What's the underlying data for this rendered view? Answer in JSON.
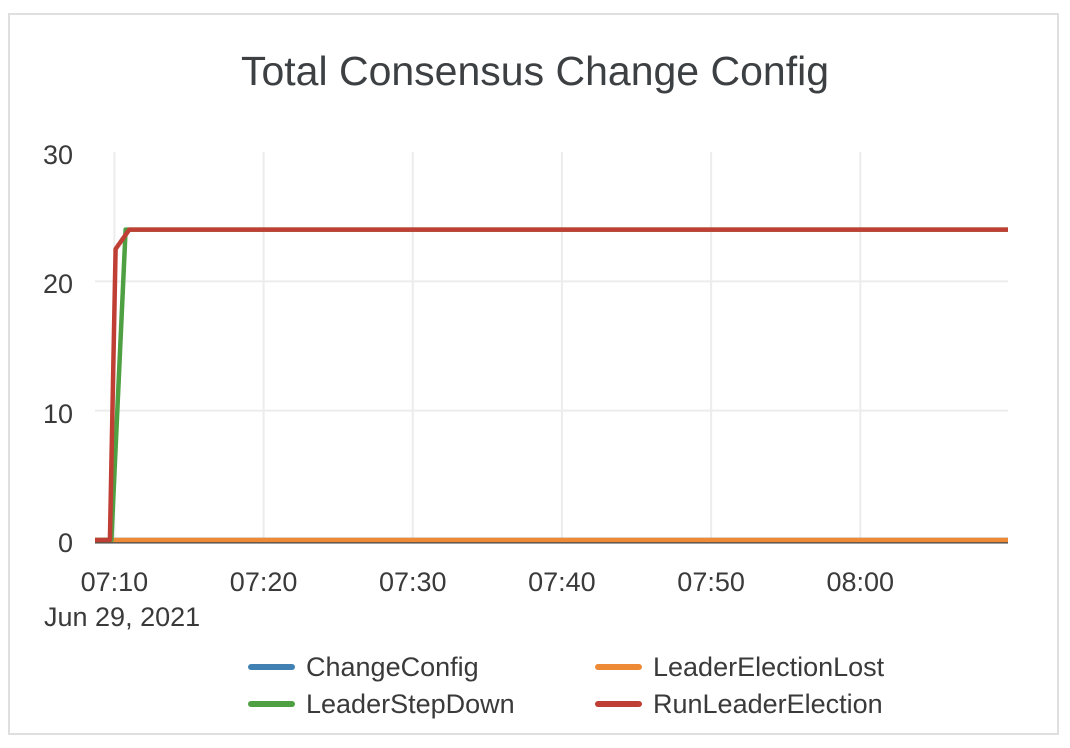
{
  "page": {
    "background_color": "#ffffff",
    "card_border_color": "#dfdfdf"
  },
  "chart_data": {
    "type": "line",
    "title": "Total Consensus Change Config",
    "grid": true,
    "legend_position": "bottom",
    "legend_columns": 2,
    "legend_order": [
      "ChangeConfig",
      "LeaderElectionLost",
      "LeaderStepDown",
      "RunLeaderElection"
    ],
    "x_axis": {
      "date_label": "Jun 29, 2021",
      "unit": "time-of-day",
      "min_minutes": 8.7,
      "max_minutes": 69.9,
      "ticks": [
        {
          "minutes": 10,
          "label": "07:10"
        },
        {
          "minutes": 20,
          "label": "07:20"
        },
        {
          "minutes": 30,
          "label": "07:30"
        },
        {
          "minutes": 40,
          "label": "07:40"
        },
        {
          "minutes": 50,
          "label": "07:50"
        },
        {
          "minutes": 60,
          "label": "08:00"
        }
      ]
    },
    "y_axis": {
      "min": 0,
      "max": 30,
      "ticks": [
        {
          "value": 0,
          "label": "0"
        },
        {
          "value": 10,
          "label": "10"
        },
        {
          "value": 20,
          "label": "20"
        },
        {
          "value": 30,
          "label": "30"
        }
      ],
      "gridline_values": [
        10,
        20
      ]
    },
    "series": [
      {
        "name": "ChangeConfig",
        "color": "#4080b2",
        "points": [
          [
            8.7,
            0
          ],
          [
            69.9,
            0
          ]
        ]
      },
      {
        "name": "LeaderElectionLost",
        "color": "#ee8a35",
        "points": [
          [
            8.7,
            0
          ],
          [
            69.9,
            0
          ]
        ]
      },
      {
        "name": "LeaderStepDown",
        "color": "#4f9f43",
        "points": [
          [
            8.7,
            0
          ],
          [
            9.8,
            0
          ],
          [
            10.75,
            24
          ],
          [
            69.9,
            24
          ]
        ]
      },
      {
        "name": "RunLeaderElection",
        "color": "#c03f35",
        "points": [
          [
            8.7,
            0
          ],
          [
            9.7,
            0
          ],
          [
            10.08,
            22.5
          ],
          [
            11.0,
            24
          ],
          [
            69.9,
            24
          ]
        ]
      }
    ],
    "styles": {
      "gridline_color": "#ececec",
      "zero_axis_color": "#3e3e3e",
      "tick_label_color": "#3a3a3a",
      "title_color": "#3c4043"
    }
  }
}
